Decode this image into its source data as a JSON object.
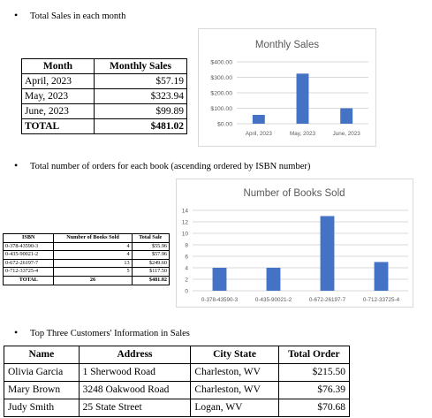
{
  "section1": {
    "bullet": "•",
    "title": "Total Sales in each month"
  },
  "monthly_table": {
    "headers": [
      "Month",
      "Monthly Sales"
    ],
    "rows": [
      [
        "April, 2023",
        "$57.19"
      ],
      [
        "May, 2023",
        "$323.94"
      ],
      [
        "June, 2023",
        "$99.89"
      ]
    ],
    "total": [
      "TOTAL",
      "$481.02"
    ]
  },
  "section2": {
    "bullet": "•",
    "title": "Total number of orders for each book (ascending ordered by ISBN number)"
  },
  "book_table": {
    "headers": [
      "ISBN",
      "Number of Books Sold",
      "Total Sale"
    ],
    "rows": [
      [
        "0-378-43590-3",
        "4",
        "$55.96"
      ],
      [
        "0-435-90021-2",
        "4",
        "$57.96"
      ],
      [
        "0-672-26197-7",
        "13",
        "$249.60"
      ],
      [
        "0-712-33725-4",
        "5",
        "$117.50"
      ]
    ],
    "total": [
      "TOTAL",
      "26",
      "$481.02"
    ]
  },
  "section3": {
    "bullet": "•",
    "title": "Top Three Customers' Information in Sales"
  },
  "customer_table": {
    "headers": [
      "Name",
      "Address",
      "City State",
      "Total Order"
    ],
    "rows": [
      [
        "Olivia Garcia",
        "1 Sherwood Road",
        "Charleston, WV",
        "$215.50"
      ],
      [
        "Mary Brown",
        "3248 Oakwood Road",
        "Charleston, WV",
        "$76.39"
      ],
      [
        "Judy Smith",
        "25 State Street",
        "Logan, WV",
        "$70.68"
      ]
    ]
  },
  "chart_data": [
    {
      "type": "bar",
      "title": "Monthly Sales",
      "categories": [
        "April, 2023",
        "May, 2023",
        "June, 2023"
      ],
      "values": [
        57.19,
        323.94,
        99.89
      ],
      "yticks": [
        "$0.00",
        "$100.00",
        "$200.00",
        "$300.00",
        "$400.00"
      ],
      "ylim": [
        0,
        400
      ],
      "grid": true,
      "bar_color": "#4472c4"
    },
    {
      "type": "bar",
      "title": "Number of Books Sold",
      "categories": [
        "0-378-43590-3",
        "0-435-90021-2",
        "0-672-26197-7",
        "0-712-33725-4"
      ],
      "values": [
        4,
        4,
        13,
        5
      ],
      "yticks": [
        "0",
        "2",
        "4",
        "6",
        "8",
        "10",
        "12",
        "14"
      ],
      "ylim": [
        0,
        14
      ],
      "grid": true,
      "bar_color": "#4472c4"
    }
  ]
}
